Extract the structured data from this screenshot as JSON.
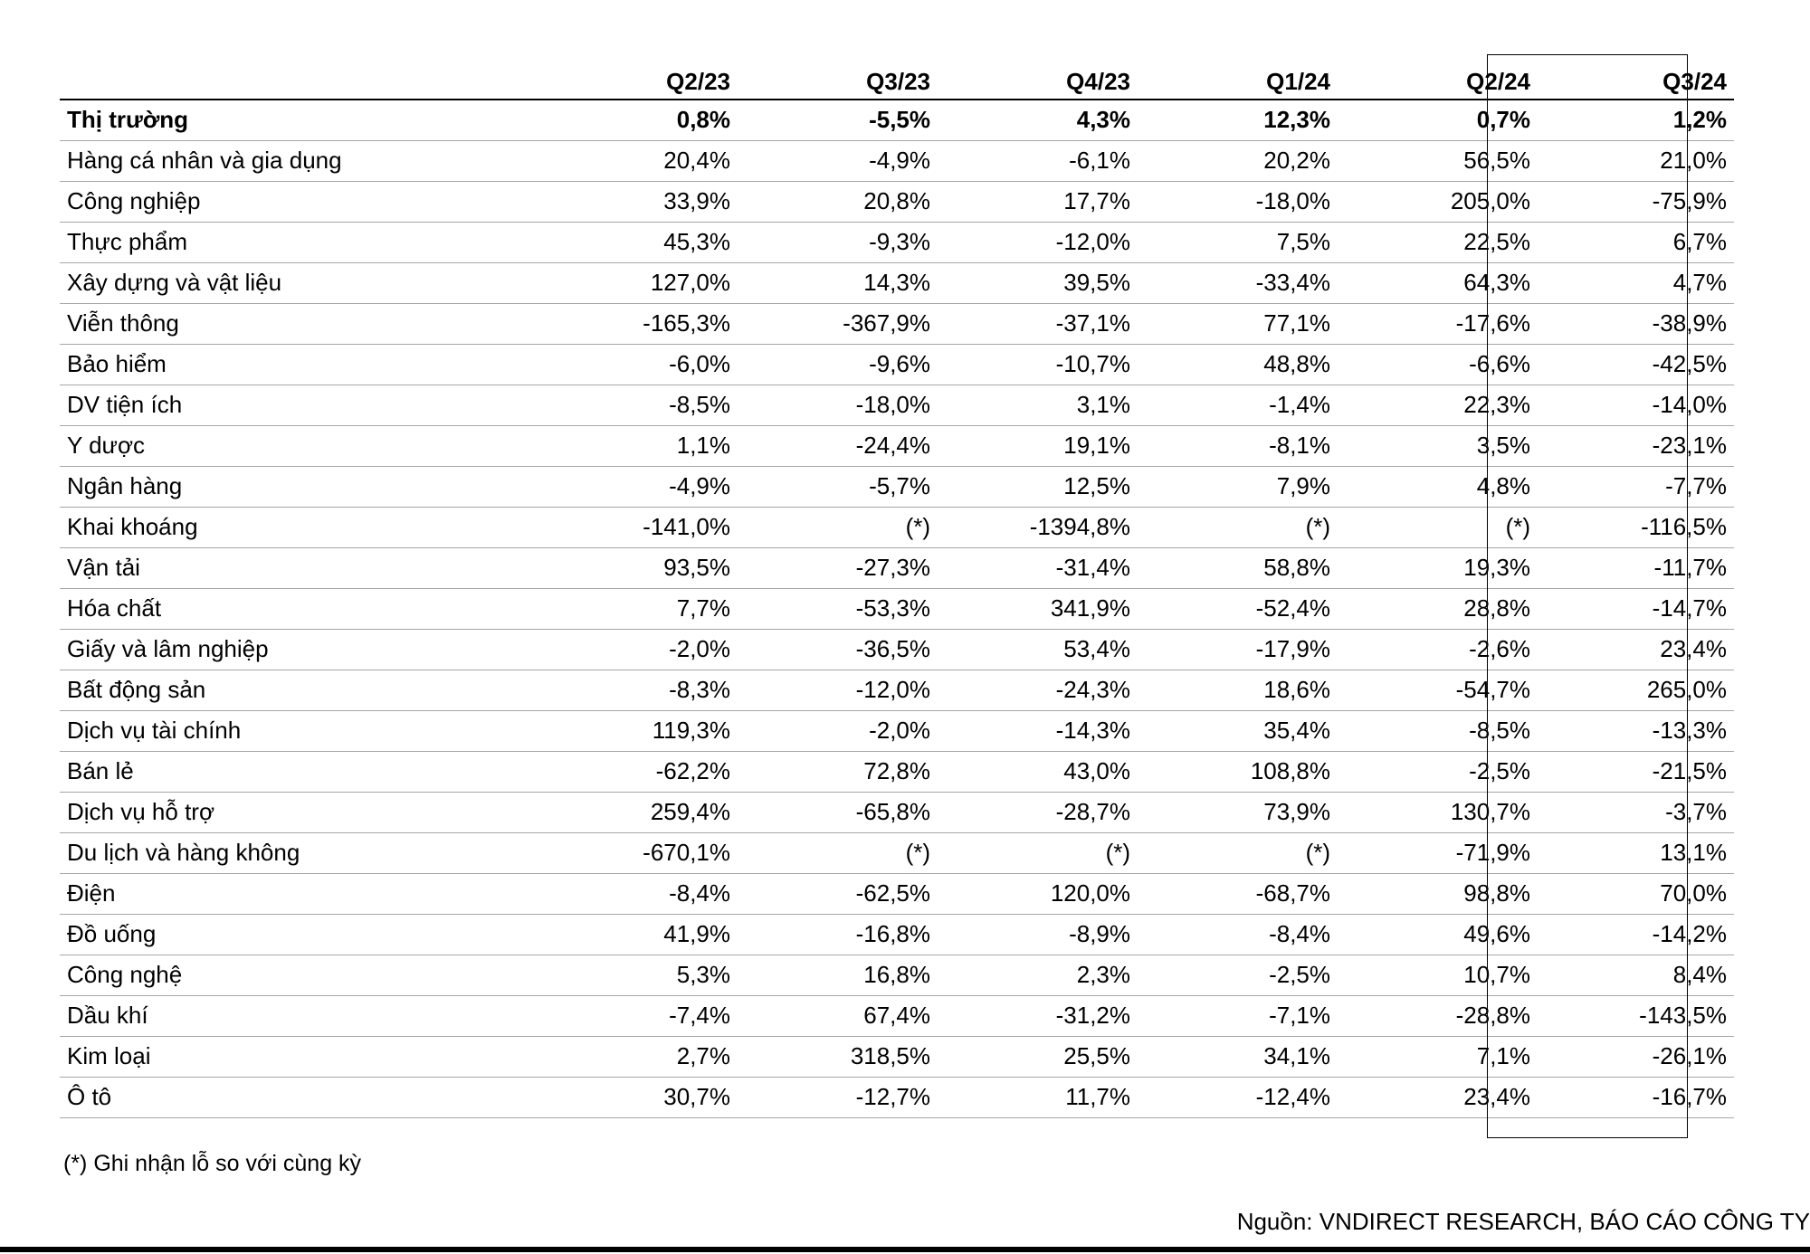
{
  "table": {
    "headers": [
      "",
      "Q2/23",
      "Q3/23",
      "Q4/23",
      "Q1/24",
      "Q2/24",
      "Q3/24"
    ],
    "rows": [
      {
        "name": "Thị trường",
        "values": [
          "0,8%",
          "-5,5%",
          "4,3%",
          "12,3%",
          "0,7%",
          "1,2%"
        ]
      },
      {
        "name": "Hàng cá nhân và gia dụng",
        "values": [
          "20,4%",
          "-4,9%",
          "-6,1%",
          "20,2%",
          "56,5%",
          "21,0%"
        ]
      },
      {
        "name": "Công nghiệp",
        "values": [
          "33,9%",
          "20,8%",
          "17,7%",
          "-18,0%",
          "205,0%",
          "-75,9%"
        ]
      },
      {
        "name": "Thực phẩm",
        "values": [
          "45,3%",
          "-9,3%",
          "-12,0%",
          "7,5%",
          "22,5%",
          "6,7%"
        ]
      },
      {
        "name": "Xây dựng và vật liệu",
        "values": [
          "127,0%",
          "14,3%",
          "39,5%",
          "-33,4%",
          "64,3%",
          "4,7%"
        ]
      },
      {
        "name": "Viễn thông",
        "values": [
          "-165,3%",
          "-367,9%",
          "-37,1%",
          "77,1%",
          "-17,6%",
          "-38,9%"
        ]
      },
      {
        "name": "Bảo hiểm",
        "values": [
          "-6,0%",
          "-9,6%",
          "-10,7%",
          "48,8%",
          "-6,6%",
          "-42,5%"
        ]
      },
      {
        "name": "DV tiện ích",
        "values": [
          "-8,5%",
          "-18,0%",
          "3,1%",
          "-1,4%",
          "22,3%",
          "-14,0%"
        ]
      },
      {
        "name": "Y dược",
        "values": [
          "1,1%",
          "-24,4%",
          "19,1%",
          "-8,1%",
          "3,5%",
          "-23,1%"
        ]
      },
      {
        "name": "Ngân hàng",
        "values": [
          "-4,9%",
          "-5,7%",
          "12,5%",
          "7,9%",
          "4,8%",
          "-7,7%"
        ]
      },
      {
        "name": "Khai khoáng",
        "values": [
          "-141,0%",
          "(*)",
          "-1394,8%",
          "(*)",
          "(*)",
          "-116,5%"
        ]
      },
      {
        "name": "Vận tải",
        "values": [
          "93,5%",
          "-27,3%",
          "-31,4%",
          "58,8%",
          "19,3%",
          "-11,7%"
        ]
      },
      {
        "name": "Hóa chất",
        "values": [
          "7,7%",
          "-53,3%",
          "341,9%",
          "-52,4%",
          "28,8%",
          "-14,7%"
        ]
      },
      {
        "name": "Giấy và lâm nghiệp",
        "values": [
          "-2,0%",
          "-36,5%",
          "53,4%",
          "-17,9%",
          "-2,6%",
          "23,4%"
        ]
      },
      {
        "name": "Bất động sản",
        "values": [
          "-8,3%",
          "-12,0%",
          "-24,3%",
          "18,6%",
          "-54,7%",
          "265,0%"
        ]
      },
      {
        "name": "Dịch vụ tài chính",
        "values": [
          "119,3%",
          "-2,0%",
          "-14,3%",
          "35,4%",
          "-8,5%",
          "-13,3%"
        ]
      },
      {
        "name": "Bán lẻ",
        "values": [
          "-62,2%",
          "72,8%",
          "43,0%",
          "108,8%",
          "-2,5%",
          "-21,5%"
        ]
      },
      {
        "name": "Dịch vụ hỗ trợ",
        "values": [
          "259,4%",
          "-65,8%",
          "-28,7%",
          "73,9%",
          "130,7%",
          "-3,7%"
        ]
      },
      {
        "name": "Du lịch và hàng không",
        "values": [
          "-670,1%",
          "(*)",
          "(*)",
          "(*)",
          "-71,9%",
          "13,1%"
        ]
      },
      {
        "name": "Điện",
        "values": [
          "-8,4%",
          "-62,5%",
          "120,0%",
          "-68,7%",
          "98,8%",
          "70,0%"
        ]
      },
      {
        "name": "Đồ uống",
        "values": [
          "41,9%",
          "-16,8%",
          "-8,9%",
          "-8,4%",
          "49,6%",
          "-14,2%"
        ]
      },
      {
        "name": "Công nghệ",
        "values": [
          "5,3%",
          "16,8%",
          "2,3%",
          "-2,5%",
          "10,7%",
          "8,4%"
        ]
      },
      {
        "name": "Dầu khí",
        "values": [
          "-7,4%",
          "67,4%",
          "-31,2%",
          "-7,1%",
          "-28,8%",
          "-143,5%"
        ]
      },
      {
        "name": "Kim loại",
        "values": [
          "2,7%",
          "318,5%",
          "25,5%",
          "34,1%",
          "7,1%",
          "-26,1%"
        ]
      },
      {
        "name": "Ô tô",
        "values": [
          "30,7%",
          "-12,7%",
          "11,7%",
          "-12,4%",
          "23,4%",
          "-16,7%"
        ]
      }
    ]
  },
  "footnote": "(*) Ghi nhận lỗ so với cùng kỳ",
  "source": "Nguồn: VNDIRECT RESEARCH, BÁO CÁO CÔNG TY"
}
